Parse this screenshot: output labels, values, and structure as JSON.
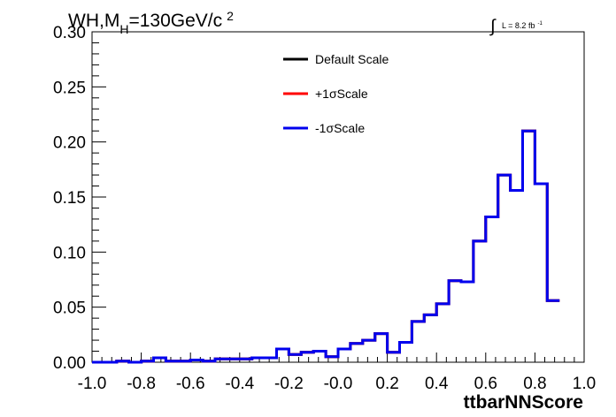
{
  "header": {
    "title_prefix": "WH,M",
    "title_sub": "H",
    "title_value": "=130GeV/c",
    "title_sup": "2",
    "lumi_symbol": "∫",
    "lumi_text": "L = 8.2 fb",
    "lumi_sup": "-1"
  },
  "chart_data": {
    "type": "line",
    "title": "WH,MH=130GeV/c2",
    "xlabel": "ttbarNNScore",
    "ylabel": "",
    "xlim": [
      -1.0,
      1.0
    ],
    "ylim": [
      0.0,
      0.3
    ],
    "x_ticks": [
      "-1.0",
      "-0.8",
      "-0.6",
      "-0.4",
      "-0.2",
      "-0.0",
      "0.2",
      "0.4",
      "0.6",
      "0.8",
      "1.0"
    ],
    "y_ticks": [
      "0.00",
      "0.05",
      "0.10",
      "0.15",
      "0.20",
      "0.25",
      "0.30"
    ],
    "grid": false,
    "legend_position": "top-center",
    "bin_width": 0.05,
    "bin_edges_start": -1.0,
    "series": [
      {
        "name": "Default Scale",
        "color": "#000000",
        "values": [
          0.0,
          0.0,
          0.001,
          0.0,
          0.001,
          0.004,
          0.001,
          0.001,
          0.002,
          0.001,
          0.003,
          0.003,
          0.003,
          0.004,
          0.004,
          0.012,
          0.007,
          0.009,
          0.01,
          0.005,
          0.012,
          0.017,
          0.02,
          0.026,
          0.009,
          0.018,
          0.037,
          0.043,
          0.053,
          0.074,
          0.073,
          0.11,
          0.132,
          0.17,
          0.156,
          0.21,
          0.162,
          0.056
        ]
      },
      {
        "name": "+1σScale",
        "color": "#ff0000",
        "values": [
          0.0,
          0.0,
          0.001,
          0.0,
          0.001,
          0.004,
          0.001,
          0.001,
          0.002,
          0.001,
          0.003,
          0.003,
          0.003,
          0.004,
          0.004,
          0.012,
          0.007,
          0.009,
          0.01,
          0.005,
          0.012,
          0.017,
          0.02,
          0.026,
          0.009,
          0.018,
          0.037,
          0.043,
          0.053,
          0.074,
          0.073,
          0.11,
          0.132,
          0.17,
          0.156,
          0.21,
          0.162,
          0.056
        ]
      },
      {
        "name": "-1σScale",
        "color": "#0000ee",
        "values": [
          0.0,
          0.0,
          0.001,
          0.0,
          0.001,
          0.004,
          0.001,
          0.001,
          0.002,
          0.001,
          0.003,
          0.003,
          0.003,
          0.004,
          0.004,
          0.012,
          0.007,
          0.009,
          0.01,
          0.005,
          0.012,
          0.017,
          0.02,
          0.026,
          0.009,
          0.018,
          0.037,
          0.043,
          0.053,
          0.074,
          0.073,
          0.11,
          0.132,
          0.17,
          0.156,
          0.21,
          0.162,
          0.056
        ]
      }
    ]
  }
}
